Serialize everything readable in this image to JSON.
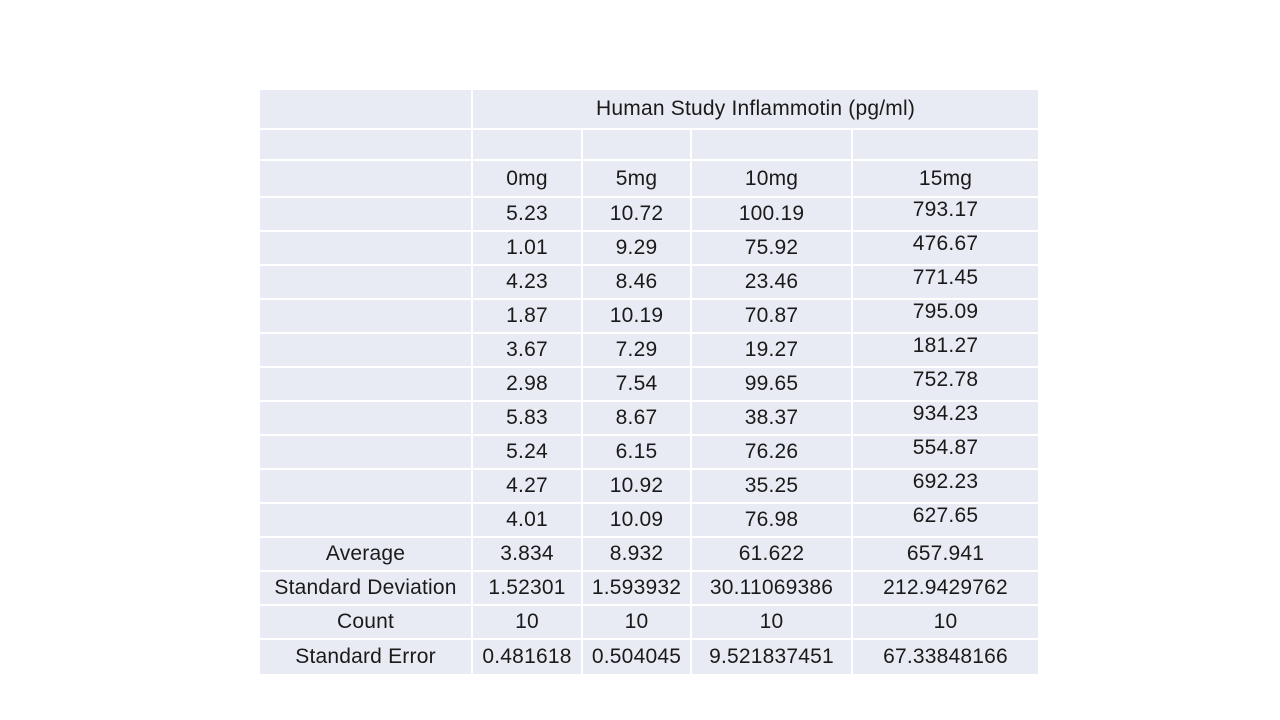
{
  "chart_data": {
    "type": "table",
    "title": "Human Study Inflammotin (pg/ml)",
    "columns": [
      "0mg",
      "5mg",
      "10mg",
      "15mg"
    ],
    "rows": [
      [
        "5.23",
        "10.72",
        "100.19",
        "793.17"
      ],
      [
        "1.01",
        "9.29",
        "75.92",
        "476.67"
      ],
      [
        "4.23",
        "8.46",
        "23.46",
        "771.45"
      ],
      [
        "1.87",
        "10.19",
        "70.87",
        "795.09"
      ],
      [
        "3.67",
        "7.29",
        "19.27",
        "181.27"
      ],
      [
        "2.98",
        "7.54",
        "99.65",
        "752.78"
      ],
      [
        "5.83",
        "8.67",
        "38.37",
        "934.23"
      ],
      [
        "5.24",
        "6.15",
        "76.26",
        "554.87"
      ],
      [
        "4.27",
        "10.92",
        "35.25",
        "692.23"
      ],
      [
        "4.01",
        "10.09",
        "76.98",
        "627.65"
      ]
    ],
    "stats": [
      {
        "label": "Average",
        "values": [
          "3.834",
          "8.932",
          "61.622",
          "657.941"
        ]
      },
      {
        "label": "Standard Deviation",
        "values": [
          "1.52301",
          "1.593932",
          "30.11069386",
          "212.9429762"
        ]
      },
      {
        "label": "Count",
        "values": [
          "10",
          "10",
          "10",
          "10"
        ]
      },
      {
        "label": "Standard Error",
        "values": [
          "0.481618",
          "0.504045",
          "9.521837451",
          "67.33848166"
        ]
      }
    ],
    "layout": {
      "legend": "none",
      "grid": "white gridlines on light periwinkle cells"
    },
    "colors": {
      "cell_fill": "#e9ebf4",
      "gridline": "#ffffff",
      "text": "#1a1a1a",
      "page_background": "#ffffff"
    }
  }
}
